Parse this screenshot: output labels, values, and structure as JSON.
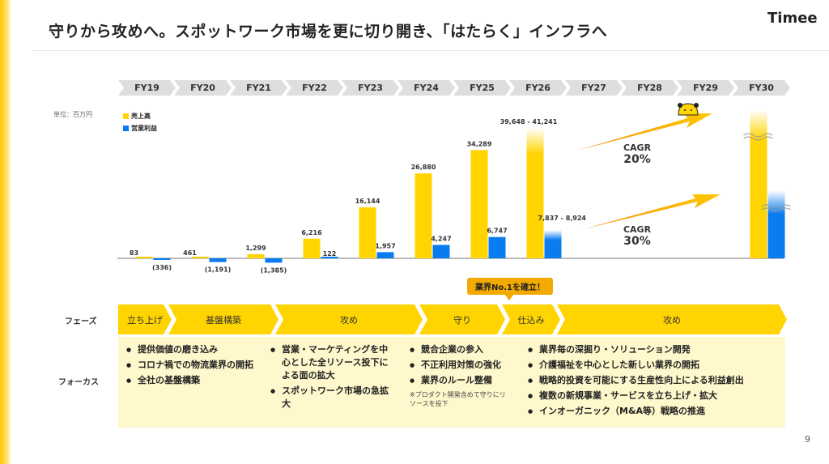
{
  "title": "守りから攻めへ。スポットワーク市場を更に切り開き、「はたらく」インフラへ",
  "logo": "Timee",
  "page_number": "9",
  "unit_label": "単位：百万円",
  "colors": {
    "revenue": "#ffd400",
    "operating_income": "#0a7cf0",
    "accent": "#f2a900"
  },
  "chart_data": {
    "type": "bar",
    "categories": [
      "FY19",
      "FY20",
      "FY21",
      "FY22",
      "FY23",
      "FY24",
      "FY25",
      "FY26",
      "FY27",
      "FY28",
      "FY29",
      "FY30"
    ],
    "series": [
      {
        "name": "売上高",
        "values": [
          83,
          461,
          1299,
          6216,
          16144,
          26880,
          34289,
          [
            39648,
            41241
          ],
          null,
          null,
          null,
          "axis-break"
        ],
        "labels": [
          "83",
          "461",
          "1,299",
          "6,216",
          "16,144",
          "26,880",
          "34,289",
          "39,648 - 41,241",
          "",
          "",
          "",
          ""
        ]
      },
      {
        "name": "営業利益",
        "values": [
          -336,
          -1191,
          -1385,
          122,
          1957,
          4247,
          6747,
          [
            7837,
            8924
          ],
          null,
          null,
          null,
          "axis-break"
        ],
        "labels": [
          "(336)",
          "(1,191)",
          "(1,385)",
          "122",
          "1,957",
          "4,247",
          "6,747",
          "7,837 - 8,924",
          "",
          "",
          "",
          ""
        ]
      }
    ],
    "legend": "top-left",
    "grid": false,
    "annotations": [
      {
        "label": "CAGR",
        "value": "20%",
        "applies_to": "売上高"
      },
      {
        "label": "CAGR",
        "value": "30%",
        "applies_to": "営業利益"
      }
    ]
  },
  "callout": "業界No.1を確立！",
  "phase_label": "フェーズ",
  "focus_label": "フォーカス",
  "phases": [
    "立ち上げ",
    "基盤構築",
    "攻め",
    "守り",
    "仕込み",
    "攻め"
  ],
  "focus": [
    {
      "items": [
        "提供価値の磨き込み",
        "コロナ禍での物流業界の開拓",
        "全社の基盤構築"
      ]
    },
    {
      "items": [
        "営業・マーケティングを中心とした全リソース投下による面の拡大",
        "スポットワーク市場の急拡大"
      ]
    },
    {
      "items": [
        "競合企業の参入",
        "不正利用対策の強化",
        "業界のルール整備"
      ],
      "note": "※プロダクト開発含めて守りにリソースを投下"
    },
    {
      "items": [
        "業界毎の深掘り・ソリューション開発",
        "介護福祉を中心とした新しい業界の開拓",
        "戦略的投資を可能にする生産性向上による利益創出",
        "複数の新規事業・サービスを立ち上げ・拡大",
        "インオーガニック（M&A等）戦略の推進"
      ]
    }
  ]
}
